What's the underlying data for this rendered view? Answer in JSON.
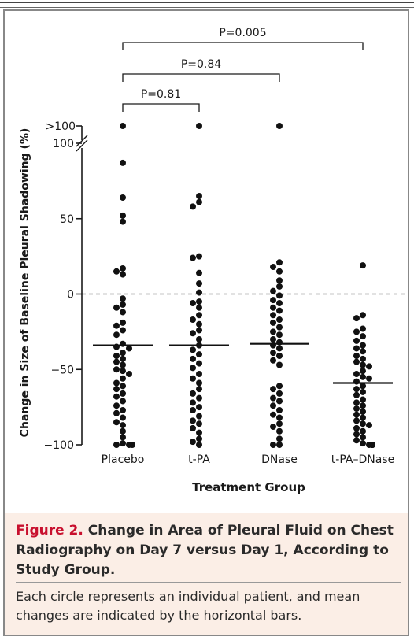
{
  "chart_data": {
    "type": "scatter",
    "xlabel": "Treatment Group",
    "ylabel": "Change in Size of Baseline Pleural Shadowing (%)",
    "ylim": [
      -100,
      110
    ],
    "y_ticks": [
      -100,
      -50,
      0,
      50,
      100
    ],
    "y_tick_labels": [
      "−100",
      "−50",
      "0",
      "50",
      "100"
    ],
    "y_break_label": ">100",
    "categories": [
      "Placebo",
      "t-PA",
      "DNase",
      "t-PA–DNase"
    ],
    "reference_line": 0,
    "means": [
      -34,
      -34,
      -33,
      -59
    ],
    "comparisons": [
      {
        "label": "P=0.81",
        "from": 0,
        "to": 1
      },
      {
        "label": "P=0.84",
        "from": 0,
        "to": 2
      },
      {
        "label": "P=0.005",
        "from": 0,
        "to": 3
      }
    ],
    "series": [
      {
        "values": [
          ">100",
          87,
          64,
          52,
          48,
          17,
          15,
          13,
          -3,
          -7,
          -9,
          -12,
          -19,
          -21,
          -24,
          -27,
          -33,
          -35,
          -36,
          -39,
          -41,
          -43,
          -45,
          -47,
          -50,
          -51,
          -53,
          -56,
          -59,
          -61,
          -63,
          -66,
          -68,
          -71,
          -74,
          -77,
          -79,
          -82,
          -85,
          -87,
          -91,
          -95,
          -99,
          -100,
          -100,
          -100
        ]
      },
      {
        "values": [
          ">100",
          65,
          61,
          58,
          25,
          24,
          14,
          7,
          1,
          -5,
          -6,
          -9,
          -14,
          -17,
          -20,
          -24,
          -26,
          -30,
          -34,
          -37,
          -40,
          -43,
          -46,
          -49,
          -53,
          -56,
          -59,
          -63,
          -66,
          -69,
          -72,
          -75,
          -77,
          -81,
          -84,
          -86,
          -89,
          -92,
          -96,
          -98,
          -100
        ]
      },
      {
        "values": [
          ">100",
          21,
          18,
          15,
          9,
          5,
          2,
          -1,
          -4,
          -6,
          -9,
          -11,
          -14,
          -17,
          -19,
          -22,
          -25,
          -27,
          -30,
          -32,
          -34,
          -36,
          -39,
          -41,
          -44,
          -47,
          -61,
          -63,
          -66,
          -69,
          -71,
          -74,
          -77,
          -80,
          -82,
          -86,
          -88,
          -91,
          -96,
          -100,
          -100
        ]
      },
      {
        "values": [
          19,
          -14,
          -16,
          -23,
          -25,
          -28,
          -31,
          -34,
          -36,
          -38,
          -41,
          -43,
          -45,
          -47,
          -48,
          -51,
          -53,
          -55,
          -56,
          -58,
          -61,
          -63,
          -65,
          -67,
          -70,
          -72,
          -74,
          -76,
          -78,
          -80,
          -82,
          -84,
          -86,
          -87,
          -89,
          -91,
          -93,
          -95,
          -97,
          -99,
          -100,
          -100,
          -100,
          -100,
          -100
        ]
      }
    ]
  },
  "caption": {
    "label": "Figure 2.",
    "title": "Change in Area of Pleural Fluid on Chest Radiography on Day 7 versus Day 1, According to Study Group.",
    "body": "Each circle represents an individual patient, and mean changes are indicated by the horizontal bars."
  }
}
